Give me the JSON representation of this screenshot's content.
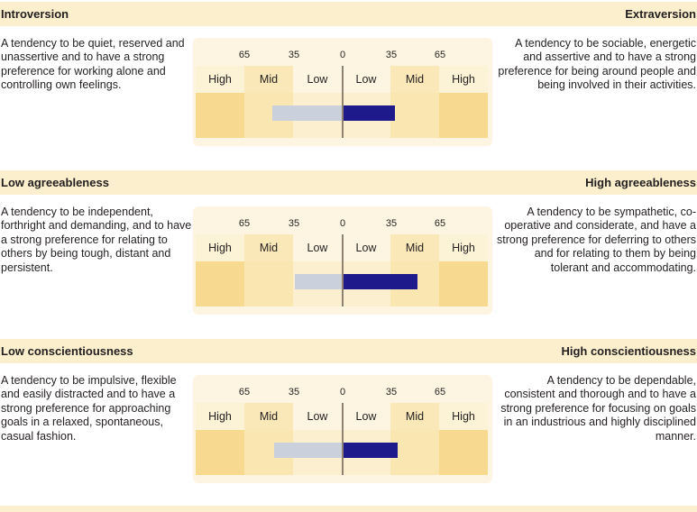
{
  "chart_data": [
    {
      "type": "bar",
      "title": "Introversion vs Extraversion",
      "left_label": "Introversion",
      "right_label": "Extraversion",
      "left_description": "A tendency to be quiet, reserved and unassertive and to have a strong preference for working alone and controlling own feelings.",
      "right_description": "A tendency to be sociable, energetic and assertive and to have a strong preference for being around people and being involved in their activities.",
      "tick_labels": [
        "65",
        "35",
        "0",
        "35",
        "65"
      ],
      "zones": [
        "High",
        "Mid",
        "Low",
        "Low",
        "Mid",
        "High"
      ],
      "axis_range": [
        -100,
        100
      ],
      "series": [
        {
          "name": "Introversion",
          "side": "left",
          "value": 47
        },
        {
          "name": "Extraversion",
          "side": "right",
          "value": 35
        }
      ]
    },
    {
      "type": "bar",
      "title": "Low agreeableness vs High agreeableness",
      "left_label": "Low agreeableness",
      "right_label": "High agreeableness",
      "left_description": "A tendency to be independent, forthright and demanding, and to have a strong preference for relating to others by being tough, distant and persistent.",
      "right_description": "A tendency to be sympathetic, co-operative and considerate, and have a strong preference for deferring to others and for relating to them by being tolerant and accommodating.",
      "tick_labels": [
        "65",
        "35",
        "0",
        "35",
        "65"
      ],
      "zones": [
        "High",
        "Mid",
        "Low",
        "Low",
        "Mid",
        "High"
      ],
      "axis_range": [
        -100,
        100
      ],
      "series": [
        {
          "name": "Low agreeableness",
          "side": "left",
          "value": 32
        },
        {
          "name": "High agreeableness",
          "side": "right",
          "value": 50
        }
      ]
    },
    {
      "type": "bar",
      "title": "Low conscientiousness vs High conscientiousness",
      "left_label": "Low conscientiousness",
      "right_label": "High conscientiousness",
      "left_description": "A tendency to be impulsive, flexible and easily distracted and to have a strong preference for approaching goals in a relaxed, spontaneous, casual fashion.",
      "right_description": "A tendency to be dependable, consistent and thorough and to have a strong preference for focusing on goals in an industrious and highly disciplined manner.",
      "tick_labels": [
        "65",
        "35",
        "0",
        "35",
        "65"
      ],
      "zones": [
        "High",
        "Mid",
        "Low",
        "Low",
        "Mid",
        "High"
      ],
      "axis_range": [
        -100,
        100
      ],
      "series": [
        {
          "name": "Low conscientiousness",
          "side": "left",
          "value": 46
        },
        {
          "name": "High conscientiousness",
          "side": "right",
          "value": 37
        }
      ]
    }
  ]
}
